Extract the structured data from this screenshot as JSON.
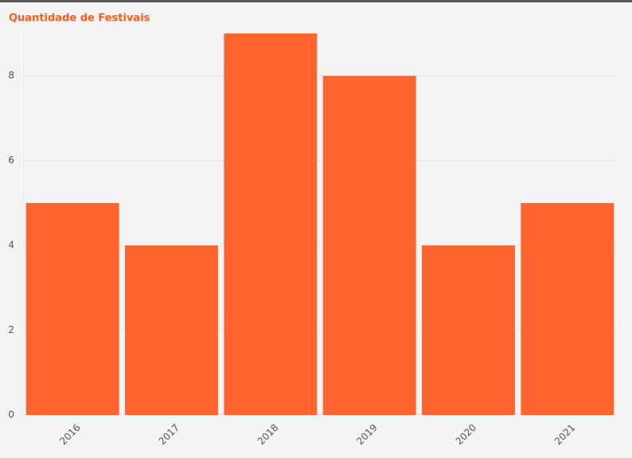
{
  "chart_data": {
    "type": "bar",
    "title": "Quantidade de Festivais",
    "categories": [
      "2016",
      "2017",
      "2018",
      "2019",
      "2020",
      "2021"
    ],
    "values": [
      5,
      4,
      9,
      8,
      4,
      5
    ],
    "color": "#ff642e",
    "ylim": [
      0,
      9
    ],
    "yticks": [
      0,
      2,
      4,
      6,
      8
    ],
    "grid": true
  }
}
